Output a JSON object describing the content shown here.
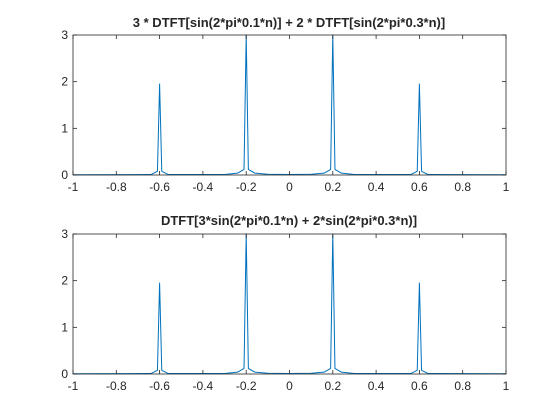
{
  "chart_data": [
    {
      "type": "line",
      "title": "3 * DTFT[sin(2*pi*0.1*n)] + 2 * DTFT[sin(2*pi*0.3*n)]",
      "xlabel": "",
      "ylabel": "",
      "xlim": [
        -1,
        1
      ],
      "ylim": [
        0,
        3
      ],
      "xticks": [
        -1,
        -0.8,
        -0.6,
        -0.4,
        -0.2,
        0,
        0.2,
        0.4,
        0.6,
        0.8,
        1
      ],
      "xtick_labels": [
        "-1",
        "-0.8",
        "-0.6",
        "-0.4",
        "-0.2",
        "0",
        "0.2",
        "0.4",
        "0.6",
        "0.8",
        "1"
      ],
      "yticks": [
        0,
        1,
        2,
        3
      ],
      "ytick_labels": [
        "0",
        "1",
        "2",
        "3"
      ],
      "grid": false,
      "line_color": "#0072BD",
      "series": [
        {
          "x": [
            -1,
            -0.64,
            -0.61,
            -0.6,
            -0.59,
            -0.56,
            -0.3,
            -0.24,
            -0.21,
            -0.2,
            -0.19,
            -0.16,
            -0.1,
            0,
            0.1,
            0.16,
            0.19,
            0.2,
            0.21,
            0.24,
            0.3,
            0.56,
            0.59,
            0.6,
            0.61,
            0.64,
            1
          ],
          "values": [
            0.005,
            0.01,
            0.08,
            1.95,
            0.08,
            0.01,
            0.01,
            0.04,
            0.12,
            3.0,
            0.12,
            0.04,
            0.015,
            0.01,
            0.015,
            0.04,
            0.12,
            3.0,
            0.12,
            0.04,
            0.01,
            0.01,
            0.08,
            1.95,
            0.08,
            0.01,
            0.005
          ]
        }
      ]
    },
    {
      "type": "line",
      "title": "DTFT[3*sin(2*pi*0.1*n) + 2*sin(2*pi*0.3*n)]",
      "xlabel": "",
      "ylabel": "",
      "xlim": [
        -1,
        1
      ],
      "ylim": [
        0,
        3
      ],
      "xticks": [
        -1,
        -0.8,
        -0.6,
        -0.4,
        -0.2,
        0,
        0.2,
        0.4,
        0.6,
        0.8,
        1
      ],
      "xtick_labels": [
        "-1",
        "-0.8",
        "-0.6",
        "-0.4",
        "-0.2",
        "0",
        "0.2",
        "0.4",
        "0.6",
        "0.8",
        "1"
      ],
      "yticks": [
        0,
        1,
        2,
        3
      ],
      "ytick_labels": [
        "0",
        "1",
        "2",
        "3"
      ],
      "grid": false,
      "line_color": "#0072BD",
      "series": [
        {
          "x": [
            -1,
            -0.64,
            -0.61,
            -0.6,
            -0.59,
            -0.56,
            -0.3,
            -0.24,
            -0.21,
            -0.2,
            -0.19,
            -0.16,
            -0.1,
            0,
            0.1,
            0.16,
            0.19,
            0.2,
            0.21,
            0.24,
            0.3,
            0.56,
            0.59,
            0.6,
            0.61,
            0.64,
            1
          ],
          "values": [
            0.005,
            0.01,
            0.08,
            1.95,
            0.08,
            0.01,
            0.01,
            0.04,
            0.12,
            3.0,
            0.12,
            0.04,
            0.015,
            0.01,
            0.015,
            0.04,
            0.12,
            3.0,
            0.12,
            0.04,
            0.01,
            0.01,
            0.08,
            1.95,
            0.08,
            0.01,
            0.005
          ]
        }
      ]
    }
  ]
}
